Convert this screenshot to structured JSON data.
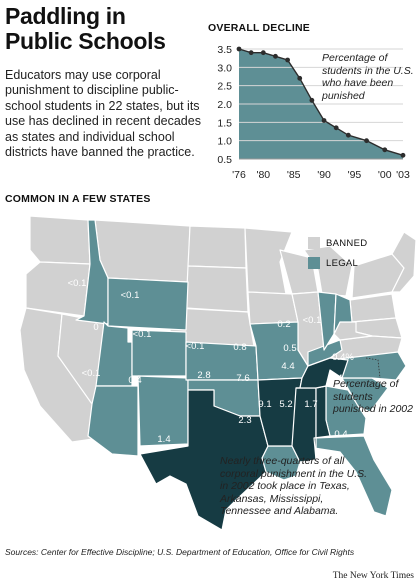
{
  "headline": {
    "line1": "Paddling in",
    "line2": "Public Schools"
  },
  "intro": "Educators may use corporal punishment to discipline public-school students in 22 states, but its use has declined in recent decades as states and individual school districts have banned the practice.",
  "decline_section": {
    "heading": "OVERALL DECLINE",
    "annotation": "Percentage of students in the U.S. who have been punished"
  },
  "chart_data": {
    "type": "line",
    "title": "OVERALL DECLINE",
    "annotation": "Percentage of students in the U.S. who have been punished",
    "x_tick_labels": [
      "'76",
      "'80",
      "'85",
      "'90",
      "'95",
      "'00",
      "'03"
    ],
    "x_tick_values": [
      1976,
      1980,
      1985,
      1990,
      1995,
      2000,
      2003
    ],
    "y_tick_labels": [
      "0.5",
      "1.0",
      "1.5",
      "2.0",
      "2.5",
      "3.0",
      "3.5"
    ],
    "xlim": [
      1976,
      2003
    ],
    "ylim": [
      0.5,
      3.5
    ],
    "grid": "horizontal",
    "series": [
      {
        "x": [
          1976,
          1978,
          1980,
          1982,
          1984,
          1986,
          1988,
          1990,
          1992,
          1994,
          1997,
          2000,
          2003
        ],
        "y": [
          3.5,
          3.4,
          3.4,
          3.3,
          3.2,
          2.7,
          2.1,
          1.55,
          1.35,
          1.15,
          1.0,
          0.75,
          0.6
        ]
      }
    ]
  },
  "states_section": {
    "heading": "COMMON IN A FEW STATES",
    "annotation": "Percentage of students punished in 2002",
    "callout": "Nearly three-quarters of all corporal punishment in the U.S. in 2002 took place in Texas, Arkansas, Mississippi, Tennessee and Alabama."
  },
  "legend": [
    {
      "label": "BANNED",
      "color": "#d1d1d1"
    },
    {
      "label": "LEGAL",
      "color": "#5e8f95"
    }
  ],
  "colors": {
    "banned": "#d1d1d1",
    "legal": "#5e8f95",
    "high": "#163b43",
    "border": "#ffffff"
  },
  "map_values": {
    "ID": "<0.1",
    "WY": "<0.1",
    "CO": "<0.1",
    "UT": "0",
    "AZ": "<0.1",
    "NM": "0.4",
    "KS": "<0.1",
    "OK": "2.8",
    "TX": "1.4",
    "MO": "0.8",
    "AR": "7.6",
    "LA": "2.3",
    "MS": "9.1",
    "AL": "5.2",
    "TN": "4.4",
    "KY": "0.5",
    "IN": "0.2",
    "OH": "<0.1",
    "NC": "0.4",
    "SC": "0.4",
    "GA": "1.7",
    "FL": "0.4",
    "NC_COAST": "0.4%"
  },
  "sources": "Sources: Center for Effective Discipline; U.S. Department of Education, Office for Civil Rights",
  "credit": "The New York Times"
}
